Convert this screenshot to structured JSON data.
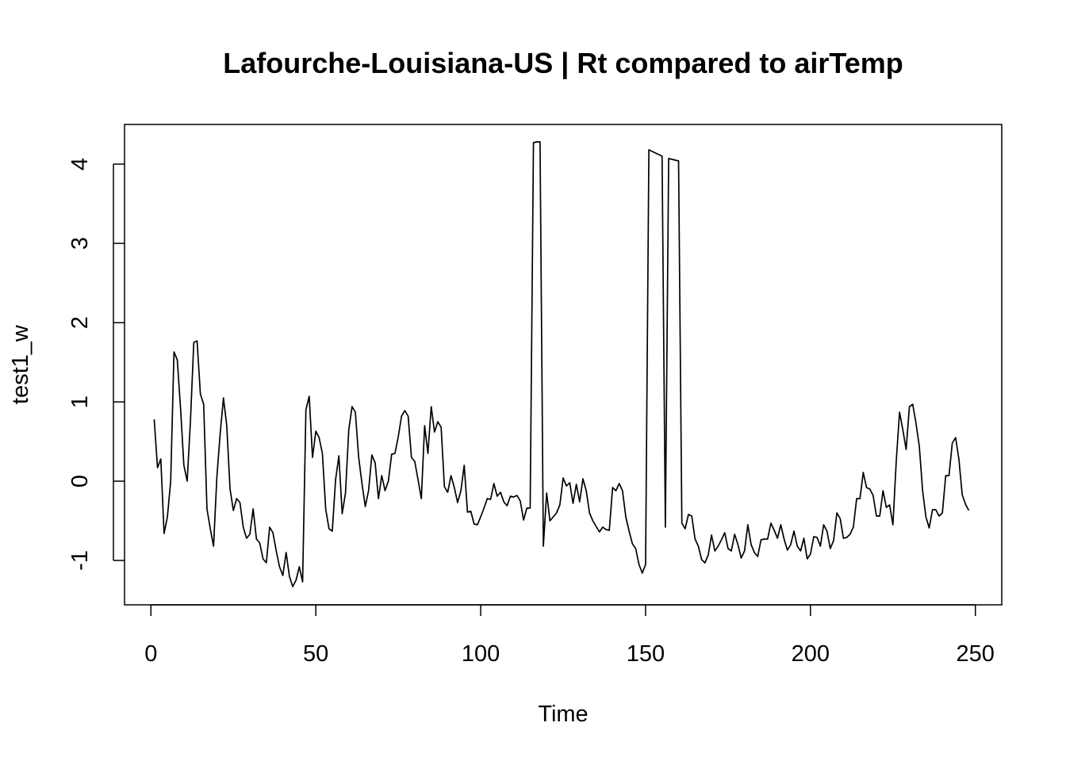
{
  "chart_data": {
    "type": "line",
    "title": "Lafourche-Louisiana-US | Rt compared to airTemp",
    "xlabel": "Time",
    "ylabel": "test1_w",
    "xlim": [
      -8,
      258
    ],
    "ylim": [
      -1.56,
      4.5
    ],
    "x_ticks": [
      0,
      50,
      100,
      150,
      200,
      250
    ],
    "x_tick_labels": [
      "0",
      "50",
      "100",
      "150",
      "200",
      "250"
    ],
    "y_ticks": [
      -1,
      0,
      1,
      2,
      3,
      4
    ],
    "y_tick_labels": [
      "-1",
      "0",
      "1",
      "2",
      "3",
      "4"
    ],
    "grid": false,
    "line_color": "#000000",
    "series": [
      {
        "values": [
          0.78,
          0.17,
          0.28,
          -0.66,
          -0.45,
          0.0,
          1.63,
          1.53,
          0.91,
          0.2,
          0.0,
          0.77,
          1.75,
          1.77,
          1.1,
          0.97,
          -0.35,
          -0.6,
          -0.82,
          0.05,
          0.6,
          1.05,
          0.7,
          -0.1,
          -0.37,
          -0.22,
          -0.27,
          -0.58,
          -0.72,
          -0.67,
          -0.35,
          -0.73,
          -0.78,
          -0.98,
          -1.03,
          -0.58,
          -0.65,
          -0.88,
          -1.08,
          -1.19,
          -0.9,
          -1.2,
          -1.33,
          -1.25,
          -1.08,
          -1.27,
          0.9,
          1.07,
          0.3,
          0.63,
          0.55,
          0.35,
          -0.35,
          -0.6,
          -0.63,
          0.02,
          0.32,
          -0.41,
          -0.15,
          0.65,
          0.94,
          0.87,
          0.3,
          -0.03,
          -0.32,
          -0.12,
          0.33,
          0.23,
          -0.22,
          0.07,
          -0.12,
          0.0,
          0.34,
          0.35,
          0.56,
          0.82,
          0.89,
          0.82,
          0.3,
          0.25,
          0.02,
          -0.22,
          0.7,
          0.35,
          0.94,
          0.62,
          0.75,
          0.68,
          -0.07,
          -0.14,
          0.07,
          -0.08,
          -0.27,
          -0.12,
          0.2,
          -0.39,
          -0.38,
          -0.54,
          -0.55,
          -0.45,
          -0.34,
          -0.22,
          -0.23,
          -0.03,
          -0.19,
          -0.14,
          -0.26,
          -0.31,
          -0.19,
          -0.2,
          -0.18,
          -0.25,
          -0.49,
          -0.34,
          -0.34,
          4.27,
          4.28,
          4.28,
          -0.82,
          -0.15,
          -0.5,
          -0.45,
          -0.4,
          -0.3,
          0.04,
          -0.06,
          -0.02,
          -0.28,
          -0.04,
          -0.26,
          0.03,
          -0.12,
          -0.4,
          -0.5,
          -0.57,
          -0.64,
          -0.58,
          -0.61,
          -0.62,
          -0.08,
          -0.12,
          -0.03,
          -0.12,
          -0.45,
          -0.63,
          -0.79,
          -0.85,
          -1.05,
          -1.16,
          -1.05,
          4.18,
          4.16,
          4.14,
          4.12,
          4.1,
          -0.58,
          4.07,
          4.06,
          4.05,
          4.04,
          -0.53,
          -0.6,
          -0.42,
          -0.44,
          -0.73,
          -0.82,
          -0.99,
          -1.03,
          -0.93,
          -0.68,
          -0.88,
          -0.82,
          -0.74,
          -0.65,
          -0.85,
          -0.88,
          -0.67,
          -0.8,
          -0.97,
          -0.88,
          -0.55,
          -0.8,
          -0.9,
          -0.95,
          -0.74,
          -0.73,
          -0.73,
          -0.53,
          -0.62,
          -0.72,
          -0.55,
          -0.73,
          -0.87,
          -0.8,
          -0.63,
          -0.82,
          -0.88,
          -0.72,
          -0.98,
          -0.92,
          -0.7,
          -0.71,
          -0.82,
          -0.55,
          -0.63,
          -0.85,
          -0.75,
          -0.4,
          -0.47,
          -0.72,
          -0.71,
          -0.67,
          -0.58,
          -0.22,
          -0.22,
          0.11,
          -0.08,
          -0.1,
          -0.18,
          -0.44,
          -0.44,
          -0.12,
          -0.33,
          -0.3,
          -0.55,
          0.25,
          0.87,
          0.65,
          0.4,
          0.94,
          0.97,
          0.73,
          0.44,
          -0.12,
          -0.45,
          -0.59,
          -0.36,
          -0.36,
          -0.44,
          -0.4,
          0.07,
          0.07,
          0.48,
          0.55,
          0.28,
          -0.17,
          -0.29,
          -0.37
        ]
      }
    ]
  }
}
